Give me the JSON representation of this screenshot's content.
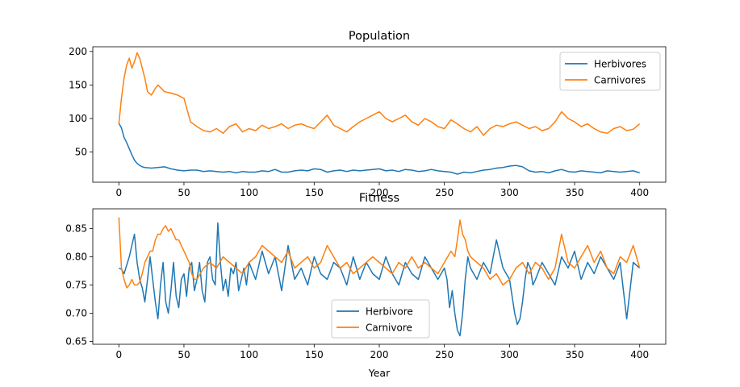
{
  "chart_data": [
    {
      "type": "line",
      "title": "Population",
      "xlabel": "",
      "ylabel": "",
      "xlim": [
        -20,
        420
      ],
      "ylim": [
        5,
        207
      ],
      "xticks": [
        0,
        50,
        100,
        150,
        200,
        250,
        300,
        350,
        400
      ],
      "yticks": [
        50,
        100,
        150,
        200
      ],
      "grid": false,
      "legend": "top-right",
      "series": [
        {
          "name": "Herbivores",
          "color": "#1f77b4",
          "x": [
            0,
            2,
            4,
            6,
            8,
            10,
            12,
            14,
            16,
            18,
            20,
            25,
            30,
            35,
            40,
            45,
            50,
            55,
            60,
            65,
            70,
            75,
            80,
            85,
            90,
            95,
            100,
            105,
            110,
            115,
            120,
            125,
            130,
            135,
            140,
            145,
            150,
            155,
            160,
            165,
            170,
            175,
            180,
            185,
            190,
            195,
            200,
            205,
            210,
            215,
            220,
            225,
            230,
            235,
            240,
            245,
            250,
            255,
            260,
            265,
            270,
            275,
            280,
            285,
            290,
            295,
            300,
            305,
            310,
            315,
            320,
            325,
            330,
            335,
            340,
            345,
            350,
            355,
            360,
            365,
            370,
            375,
            380,
            385,
            390,
            395,
            400
          ],
          "y": [
            93,
            86,
            72,
            64,
            55,
            46,
            38,
            33,
            30,
            28,
            27,
            26,
            27,
            28,
            25,
            23,
            22,
            23,
            23,
            21,
            22,
            21,
            20,
            21,
            19,
            21,
            20,
            20,
            22,
            21,
            24,
            20,
            20,
            22,
            23,
            22,
            25,
            24,
            20,
            22,
            23,
            21,
            23,
            22,
            23,
            24,
            25,
            22,
            23,
            21,
            24,
            23,
            21,
            22,
            24,
            22,
            21,
            20,
            17,
            20,
            19,
            21,
            23,
            24,
            26,
            27,
            29,
            30,
            28,
            22,
            20,
            21,
            19,
            22,
            24,
            21,
            20,
            22,
            21,
            20,
            19,
            22,
            21,
            20,
            21,
            22,
            19
          ]
        },
        {
          "name": "Carnivores",
          "color": "#ff7f0e",
          "x": [
            0,
            2,
            4,
            6,
            8,
            10,
            12,
            14,
            16,
            18,
            20,
            22,
            25,
            28,
            30,
            35,
            40,
            45,
            50,
            55,
            60,
            65,
            70,
            75,
            80,
            85,
            90,
            95,
            100,
            105,
            110,
            115,
            120,
            125,
            130,
            135,
            140,
            145,
            150,
            155,
            160,
            165,
            170,
            175,
            180,
            185,
            190,
            195,
            200,
            205,
            210,
            215,
            220,
            225,
            230,
            235,
            240,
            245,
            250,
            255,
            260,
            265,
            270,
            275,
            280,
            285,
            290,
            295,
            300,
            305,
            310,
            315,
            320,
            325,
            330,
            335,
            340,
            345,
            350,
            355,
            360,
            365,
            370,
            375,
            380,
            385,
            390,
            395,
            400
          ],
          "y": [
            92,
            130,
            160,
            180,
            190,
            175,
            185,
            198,
            190,
            175,
            160,
            140,
            135,
            145,
            150,
            140,
            138,
            135,
            130,
            95,
            88,
            82,
            80,
            85,
            78,
            88,
            92,
            80,
            85,
            82,
            90,
            85,
            88,
            92,
            85,
            90,
            92,
            88,
            85,
            95,
            105,
            90,
            85,
            80,
            88,
            95,
            100,
            105,
            110,
            100,
            95,
            100,
            105,
            95,
            90,
            100,
            95,
            88,
            85,
            98,
            92,
            85,
            80,
            88,
            75,
            85,
            90,
            88,
            92,
            95,
            90,
            85,
            88,
            82,
            85,
            95,
            110,
            100,
            95,
            88,
            92,
            85,
            80,
            78,
            85,
            88,
            82,
            84,
            92
          ]
        }
      ]
    },
    {
      "type": "line",
      "title": "Fitness",
      "xlabel": "Year",
      "ylabel": "",
      "xlim": [
        -20,
        420
      ],
      "ylim": [
        0.645,
        0.885
      ],
      "xticks": [
        0,
        50,
        100,
        150,
        200,
        250,
        300,
        350,
        400
      ],
      "yticks": [
        0.65,
        0.7,
        0.75,
        0.8,
        0.85
      ],
      "grid": false,
      "legend": "lower-center",
      "series": [
        {
          "name": "Herbivore",
          "color": "#1f77b4",
          "x": [
            0,
            2,
            4,
            6,
            8,
            10,
            12,
            14,
            16,
            18,
            20,
            22,
            24,
            26,
            28,
            30,
            32,
            34,
            36,
            38,
            40,
            42,
            44,
            46,
            48,
            50,
            52,
            54,
            56,
            58,
            60,
            62,
            64,
            66,
            68,
            70,
            72,
            74,
            76,
            78,
            80,
            82,
            84,
            86,
            88,
            90,
            92,
            94,
            96,
            98,
            100,
            105,
            110,
            115,
            120,
            125,
            130,
            135,
            140,
            145,
            150,
            155,
            160,
            165,
            170,
            175,
            180,
            185,
            190,
            195,
            200,
            205,
            210,
            215,
            220,
            225,
            230,
            235,
            240,
            245,
            250,
            252,
            254,
            256,
            258,
            260,
            262,
            264,
            266,
            268,
            270,
            275,
            280,
            285,
            290,
            295,
            300,
            302,
            304,
            306,
            308,
            310,
            312,
            314,
            316,
            318,
            320,
            325,
            330,
            335,
            340,
            345,
            350,
            355,
            360,
            365,
            370,
            375,
            380,
            385,
            390,
            395,
            400
          ],
          "y": [
            0.78,
            0.778,
            0.77,
            0.785,
            0.8,
            0.82,
            0.84,
            0.79,
            0.76,
            0.745,
            0.72,
            0.76,
            0.8,
            0.76,
            0.72,
            0.69,
            0.75,
            0.79,
            0.72,
            0.7,
            0.74,
            0.79,
            0.73,
            0.71,
            0.76,
            0.77,
            0.73,
            0.78,
            0.79,
            0.74,
            0.76,
            0.79,
            0.74,
            0.72,
            0.79,
            0.8,
            0.76,
            0.75,
            0.86,
            0.79,
            0.74,
            0.76,
            0.73,
            0.78,
            0.77,
            0.79,
            0.74,
            0.76,
            0.78,
            0.75,
            0.79,
            0.76,
            0.81,
            0.77,
            0.8,
            0.74,
            0.82,
            0.76,
            0.78,
            0.75,
            0.8,
            0.77,
            0.76,
            0.79,
            0.78,
            0.75,
            0.8,
            0.76,
            0.79,
            0.77,
            0.76,
            0.8,
            0.77,
            0.75,
            0.79,
            0.77,
            0.76,
            0.8,
            0.78,
            0.76,
            0.78,
            0.76,
            0.71,
            0.74,
            0.7,
            0.67,
            0.66,
            0.7,
            0.76,
            0.8,
            0.78,
            0.76,
            0.79,
            0.77,
            0.83,
            0.78,
            0.76,
            0.73,
            0.7,
            0.68,
            0.69,
            0.72,
            0.76,
            0.79,
            0.78,
            0.75,
            0.76,
            0.79,
            0.77,
            0.75,
            0.8,
            0.78,
            0.81,
            0.76,
            0.79,
            0.77,
            0.8,
            0.78,
            0.76,
            0.79,
            0.69,
            0.79,
            0.78
          ]
        },
        {
          "name": "Carnivore",
          "color": "#ff7f0e",
          "x": [
            0,
            2,
            4,
            6,
            8,
            10,
            12,
            14,
            16,
            18,
            20,
            22,
            24,
            26,
            28,
            30,
            32,
            34,
            36,
            38,
            40,
            42,
            44,
            46,
            48,
            50,
            52,
            54,
            56,
            58,
            60,
            65,
            70,
            75,
            80,
            85,
            90,
            95,
            100,
            105,
            110,
            115,
            120,
            125,
            130,
            135,
            140,
            145,
            150,
            155,
            160,
            165,
            170,
            175,
            180,
            185,
            190,
            195,
            200,
            205,
            210,
            215,
            220,
            225,
            230,
            235,
            240,
            245,
            250,
            255,
            258,
            260,
            262,
            264,
            266,
            268,
            270,
            275,
            280,
            285,
            290,
            295,
            300,
            305,
            310,
            315,
            320,
            325,
            330,
            335,
            340,
            345,
            350,
            355,
            360,
            365,
            370,
            375,
            380,
            385,
            390,
            395,
            400
          ],
          "y": [
            0.87,
            0.78,
            0.76,
            0.745,
            0.75,
            0.76,
            0.75,
            0.75,
            0.755,
            0.77,
            0.79,
            0.8,
            0.81,
            0.81,
            0.83,
            0.84,
            0.84,
            0.85,
            0.855,
            0.845,
            0.85,
            0.84,
            0.83,
            0.83,
            0.82,
            0.81,
            0.8,
            0.79,
            0.77,
            0.76,
            0.76,
            0.78,
            0.79,
            0.78,
            0.8,
            0.79,
            0.78,
            0.77,
            0.79,
            0.8,
            0.82,
            0.81,
            0.8,
            0.79,
            0.81,
            0.78,
            0.79,
            0.8,
            0.78,
            0.79,
            0.82,
            0.8,
            0.78,
            0.79,
            0.77,
            0.78,
            0.79,
            0.8,
            0.79,
            0.78,
            0.77,
            0.79,
            0.78,
            0.8,
            0.78,
            0.79,
            0.78,
            0.77,
            0.79,
            0.81,
            0.8,
            0.83,
            0.865,
            0.84,
            0.83,
            0.81,
            0.8,
            0.79,
            0.78,
            0.76,
            0.77,
            0.75,
            0.76,
            0.78,
            0.79,
            0.77,
            0.79,
            0.78,
            0.76,
            0.78,
            0.84,
            0.79,
            0.78,
            0.8,
            0.82,
            0.79,
            0.81,
            0.78,
            0.77,
            0.8,
            0.79,
            0.82,
            0.78
          ]
        }
      ]
    }
  ]
}
